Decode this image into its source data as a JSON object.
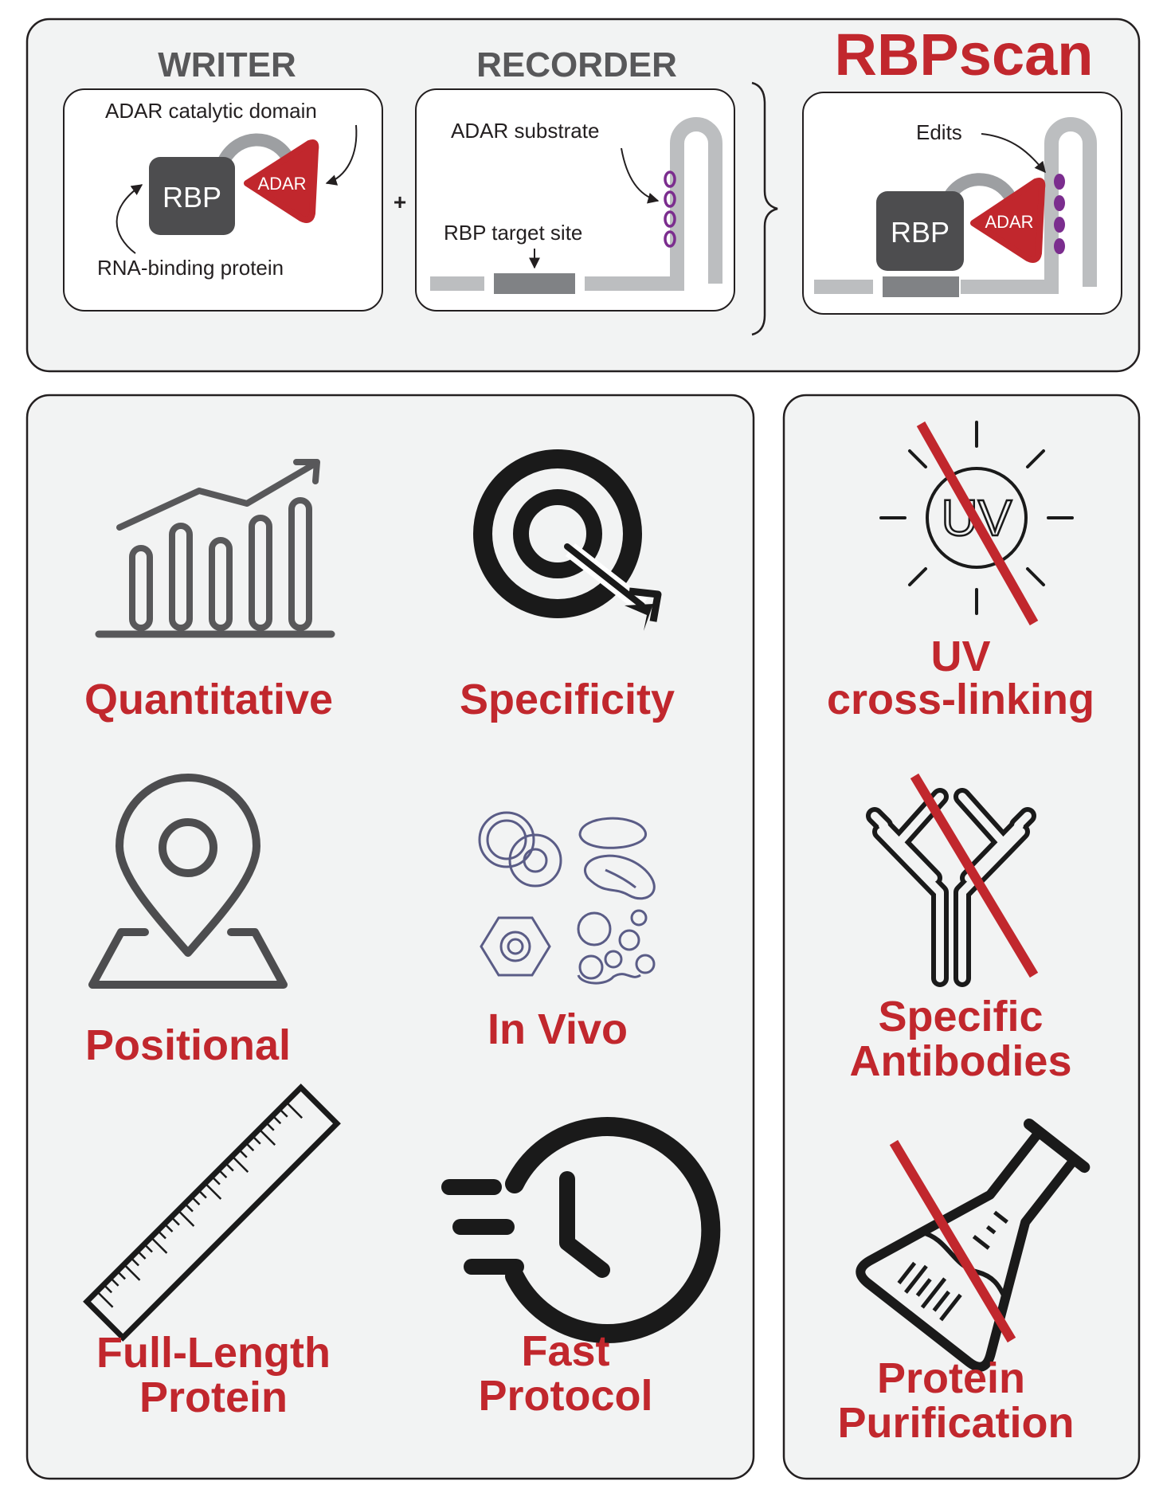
{
  "top": {
    "writer_title": "WRITER",
    "recorder_title": "RECORDER",
    "brand": "RBPscan",
    "plus": "+",
    "writer": {
      "domain_label": "ADAR catalytic domain",
      "rbp": "RBP",
      "adar": "ADAR",
      "protein_label": "RNA-binding protein"
    },
    "recorder": {
      "substrate_label": "ADAR substrate",
      "target_label": "RBP target site"
    },
    "result": {
      "edits_label": "Edits",
      "rbp": "RBP",
      "adar": "ADAR"
    }
  },
  "advantages": {
    "quantitative": "Quantitative",
    "specificity": "Specificity",
    "positional": "Positional",
    "in_vivo": "In Vivo",
    "full_length_1": "Full-Length",
    "full_length_2": "Protein",
    "fast_1": "Fast",
    "fast_2": "Protocol"
  },
  "not_required": {
    "uv_1": "UV",
    "uv_2": "cross-linking",
    "uv_icon_text": "UV",
    "antibodies_1": "Specific",
    "antibodies_2": "Antibodies",
    "purification_1": "Protein",
    "purification_2": "Purification"
  },
  "colors": {
    "accent_red": "#c1272d",
    "edit_purple": "#7b2d8e",
    "rbp_gray": "#4d4d4f",
    "rna_gray": "#bcbec0",
    "panel_bg": "#f2f3f3"
  }
}
